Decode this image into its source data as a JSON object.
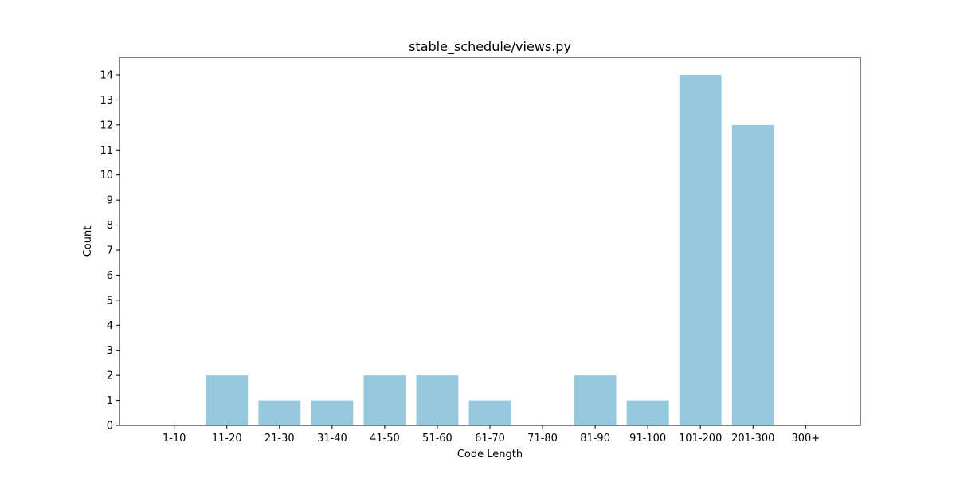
{
  "chart_data": {
    "type": "bar",
    "title": "stable_schedule/views.py",
    "xlabel": "Code Length",
    "ylabel": "Count",
    "categories": [
      "1-10",
      "11-20",
      "21-30",
      "31-40",
      "41-50",
      "51-60",
      "61-70",
      "71-80",
      "81-90",
      "91-100",
      "101-200",
      "201-300",
      "300+"
    ],
    "values": [
      0,
      2,
      1,
      1,
      2,
      2,
      1,
      0,
      2,
      1,
      14,
      12,
      0
    ],
    "ylim": [
      0,
      14.7
    ],
    "yticks": [
      0,
      1,
      2,
      3,
      4,
      5,
      6,
      7,
      8,
      9,
      10,
      11,
      12,
      13,
      14
    ],
    "grid": false,
    "bar_color": "#96c9de"
  }
}
